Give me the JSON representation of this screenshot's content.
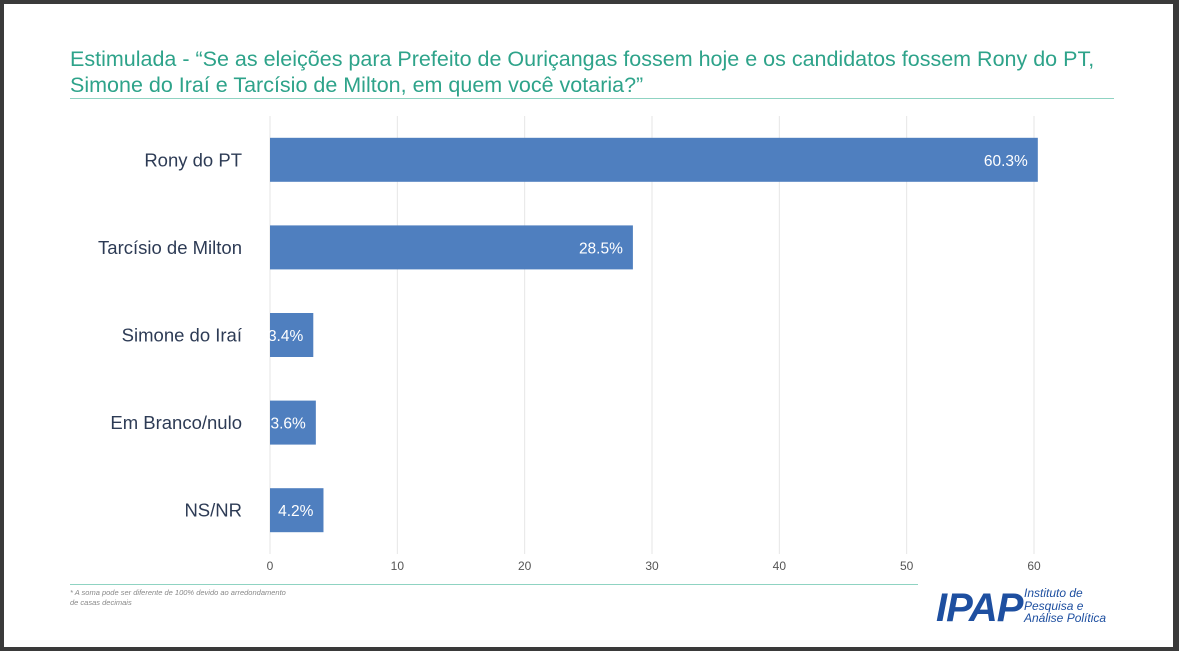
{
  "title": "Estimulada - “Se as eleições para Prefeito de Ouriçangas fossem hoje e os candidatos fossem Rony do PT, Simone do Iraí e Tarcísio de Milton, em quem você votaria?”",
  "footnote": "* A soma pode ser diferente de 100% devido ao arredondamento de casas decimais",
  "logo": {
    "mark": "IPAP",
    "line1": "Instituto de",
    "line2": "Pesquisa e",
    "line3": "Análise Política"
  },
  "colors": {
    "bar": "#4f7fbf",
    "title": "#2ea38a",
    "logo": "#1e4fa0"
  },
  "chart_data": {
    "type": "bar",
    "orientation": "horizontal",
    "title": "Estimulada - “Se as eleições para Prefeito de Ouriçangas fossem hoje e os candidatos fossem Rony do PT, Simone do Iraí e Tarcísio de Milton, em quem você votaria?”",
    "categories": [
      "Rony do PT",
      "Tarcísio de Milton",
      "Simone do Iraí",
      "Em Branco/nulo",
      "NS/NR"
    ],
    "values": [
      60.3,
      28.5,
      3.4,
      3.6,
      4.2
    ],
    "data_labels": [
      "60.3%",
      "28.5%",
      "3.4%",
      "3.6%",
      "4.2%"
    ],
    "xlim": [
      0,
      60
    ],
    "xticks": [
      0,
      10,
      20,
      30,
      40,
      50,
      60
    ],
    "xlabel": "",
    "ylabel": "",
    "grid": true,
    "legend": "none"
  }
}
